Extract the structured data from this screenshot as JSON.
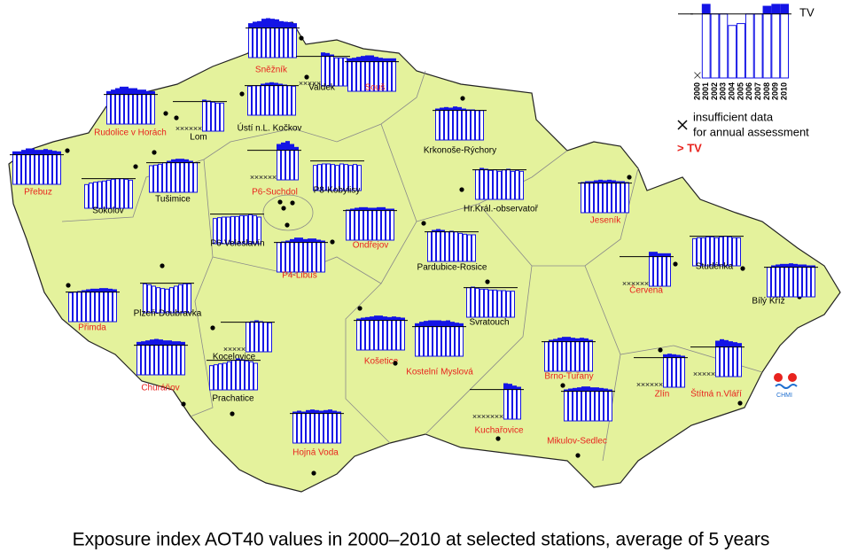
{
  "map": {
    "caption": "Exposure index AOT40 values in 2000–2010 at selected stations, average of 5 years",
    "tv": 1,
    "ylim": [
      0,
      1.35
    ],
    "legend_ylim": [
      0,
      1.19
    ],
    "bar_color": "#1414e6",
    "legend": {
      "tv_label": "TV",
      "years": [
        "2000",
        "2001",
        "2002",
        "2003",
        "2004",
        "2005",
        "2006",
        "2007",
        "2008",
        "2009",
        "2010"
      ],
      "sample": [
        null,
        1.15,
        1.0,
        1.0,
        0.82,
        0.85,
        1.0,
        1.0,
        1.12,
        1.15,
        1.15
      ],
      "insufficient_1": "insufficient data",
      "insufficient_2": "for annual assessment",
      "exceed": "> TV",
      "exceed_color": "#e8231e"
    },
    "logo": "CHMI",
    "stations": [
      {
        "name": "Sněžník",
        "label_color": "#e8231e",
        "values": [
          1.15,
          1.2,
          1.22,
          1.3,
          1.32,
          1.3,
          1.28,
          1.22,
          1.2,
          1.18,
          1.15
        ]
      },
      {
        "name": "Valdek",
        "label_color": "#000000",
        "values": [
          null,
          null,
          null,
          null,
          null,
          1.12,
          1.1,
          1.05,
          0.95,
          0.95,
          0.95
        ]
      },
      {
        "name": "Souš",
        "label_color": "#e8231e",
        "values": [
          1.1,
          1.12,
          1.15,
          1.18,
          1.2,
          1.2,
          1.15,
          1.12,
          1.1,
          1.1,
          1.1
        ]
      },
      {
        "name": "Rudolice v Horách",
        "label_color": "#e8231e",
        "values": [
          1.1,
          1.15,
          1.2,
          1.25,
          1.25,
          1.2,
          1.2,
          1.15,
          1.15,
          1.1,
          1.1
        ]
      },
      {
        "name": "Lom",
        "label_color": "#000000",
        "values": [
          null,
          null,
          null,
          null,
          null,
          null,
          1.05,
          1.02,
          0.98,
          0.95,
          0.95
        ]
      },
      {
        "name": "Ústí n.L. Kočkov",
        "label_color": "#000000",
        "values": [
          0.98,
          1.0,
          1.0,
          1.05,
          1.08,
          1.1,
          1.08,
          1.05,
          1.02,
          1.0,
          0.98
        ]
      },
      {
        "name": "Krkonoše-Rýchory",
        "label_color": "#000000",
        "values": [
          1.05,
          1.08,
          1.1,
          1.08,
          1.12,
          1.1,
          1.05,
          1.02,
          1.02,
          1.0,
          1.0
        ]
      },
      {
        "name": "Přebuz",
        "label_color": "#e8231e",
        "values": [
          1.1,
          1.1,
          1.15,
          1.2,
          1.2,
          1.15,
          1.15,
          1.18,
          1.15,
          1.12,
          1.1
        ]
      },
      {
        "name": "Sokolov",
        "label_color": "#000000",
        "values": [
          0.8,
          0.85,
          0.88,
          0.9,
          0.92,
          0.95,
          0.98,
          1.0,
          1.0,
          0.98,
          0.95
        ]
      },
      {
        "name": "Tušimice",
        "label_color": "#000000",
        "values": [
          0.9,
          0.92,
          0.95,
          1.0,
          1.05,
          1.1,
          1.12,
          1.12,
          1.1,
          1.05,
          1.0
        ]
      },
      {
        "name": "P6-Suchdol",
        "label_color": "#e8231e",
        "values": [
          null,
          null,
          null,
          null,
          null,
          null,
          1.2,
          1.25,
          1.3,
          1.2,
          1.1
        ]
      },
      {
        "name": "P8-Kobylisy",
        "label_color": "#000000",
        "values": [
          0.85,
          0.88,
          0.9,
          0.9,
          0.88,
          0.85,
          0.9,
          0.88,
          0.85,
          0.88,
          0.85
        ]
      },
      {
        "name": "Hr.Král.-observatoř",
        "label_color": "#000000",
        "values": [
          1.0,
          1.05,
          1.02,
          0.98,
          1.0,
          0.95,
          1.0,
          1.02,
          0.95,
          0.98,
          0.95
        ]
      },
      {
        "name": "Jeseník",
        "label_color": "#e8231e",
        "values": [
          1.02,
          1.05,
          1.05,
          1.08,
          1.1,
          1.08,
          1.1,
          1.08,
          1.05,
          1.05,
          1.02
        ]
      },
      {
        "name": "P6-Veleslavín",
        "label_color": "#000000",
        "values": [
          0.85,
          0.88,
          0.9,
          0.9,
          0.92,
          0.92,
          0.95,
          0.95,
          0.98,
          0.95,
          0.9
        ]
      },
      {
        "name": "Ondřejov",
        "label_color": "#e8231e",
        "values": [
          1.02,
          1.05,
          1.08,
          1.1,
          1.1,
          1.08,
          1.08,
          1.1,
          1.1,
          1.05,
          1.05
        ]
      },
      {
        "name": "P4-Libuš",
        "label_color": "#e8231e",
        "values": [
          1.0,
          1.02,
          1.05,
          1.1,
          1.15,
          1.15,
          1.1,
          1.12,
          1.12,
          1.08,
          1.05
        ]
      },
      {
        "name": "Pardubice-Rosice",
        "label_color": "#000000",
        "values": [
          1.0,
          1.05,
          1.08,
          1.05,
          1.0,
          1.02,
          1.0,
          0.95,
          0.92,
          0.9,
          0.9
        ]
      },
      {
        "name": "Studénka",
        "label_color": "#000000",
        "values": [
          0.92,
          0.95,
          0.95,
          0.98,
          0.98,
          0.95,
          0.98,
          1.0,
          0.98,
          0.95,
          0.95
        ]
      },
      {
        "name": "Bílý Kříž",
        "label_color": "#000000",
        "values": [
          1.0,
          1.05,
          1.08,
          1.1,
          1.1,
          1.12,
          1.1,
          1.08,
          1.08,
          1.05,
          1.05
        ]
      },
      {
        "name": "Červená",
        "label_color": "#e8231e",
        "values": [
          null,
          null,
          null,
          null,
          null,
          null,
          1.15,
          1.15,
          1.1,
          1.1,
          1.1
        ]
      },
      {
        "name": "Přimda",
        "label_color": "#e8231e",
        "values": [
          0.98,
          1.0,
          1.02,
          1.05,
          1.08,
          1.1,
          1.1,
          1.12,
          1.12,
          1.1,
          1.08
        ]
      },
      {
        "name": "Plzeň-Doubravka",
        "label_color": "#000000",
        "values": [
          0.98,
          0.95,
          0.9,
          0.85,
          0.82,
          0.8,
          0.85,
          0.9,
          0.95,
          0.98,
          0.98
        ]
      },
      {
        "name": "Svratouch",
        "label_color": "#000000",
        "values": [
          1.0,
          1.02,
          0.98,
          0.95,
          0.95,
          0.92,
          0.92,
          0.9,
          0.9,
          0.88,
          0.88
        ]
      },
      {
        "name": "Košetice",
        "label_color": "#e8231e",
        "values": [
          1.05,
          1.08,
          1.1,
          1.12,
          1.15,
          1.15,
          1.12,
          1.1,
          1.12,
          1.1,
          1.08
        ]
      },
      {
        "name": "Kostelní Myslová",
        "label_color": "#e8231e",
        "values": [
          1.1,
          1.15,
          1.18,
          1.2,
          1.2,
          1.2,
          1.18,
          1.2,
          1.15,
          1.12,
          1.1
        ]
      },
      {
        "name": "Kocelovice",
        "label_color": "#000000",
        "values": [
          null,
          null,
          null,
          null,
          null,
          1.0,
          1.02,
          1.05,
          1.02,
          1.0,
          0.98
        ]
      },
      {
        "name": "Brno-Tuřany",
        "label_color": "#e8231e",
        "values": [
          1.0,
          1.05,
          1.08,
          1.12,
          1.15,
          1.15,
          1.12,
          1.1,
          1.12,
          1.1,
          1.05
        ]
      },
      {
        "name": "Churáňov",
        "label_color": "#e8231e",
        "values": [
          1.1,
          1.12,
          1.15,
          1.18,
          1.2,
          1.18,
          1.15,
          1.15,
          1.12,
          1.12,
          1.1
        ]
      },
      {
        "name": "Zlín",
        "label_color": "#e8231e",
        "values": [
          null,
          null,
          null,
          null,
          null,
          null,
          1.1,
          1.12,
          1.1,
          1.08,
          1.05
        ]
      },
      {
        "name": "Štítná n.Vláří",
        "label_color": "#e8231e",
        "values": [
          null,
          null,
          null,
          null,
          null,
          1.2,
          1.25,
          1.22,
          1.18,
          1.15,
          1.12
        ]
      },
      {
        "name": "Prachatice",
        "label_color": "#000000",
        "values": [
          0.82,
          0.85,
          0.88,
          0.9,
          0.95,
          1.0,
          1.05,
          1.02,
          0.98,
          0.95,
          0.9
        ]
      },
      {
        "name": "Kuchařovice",
        "label_color": "#e8231e",
        "values": [
          null,
          null,
          null,
          null,
          null,
          null,
          null,
          1.2,
          1.18,
          1.12,
          1.08
        ]
      },
      {
        "name": "Hojná Voda",
        "label_color": "#e8231e",
        "values": [
          1.05,
          1.08,
          1.05,
          1.1,
          1.12,
          1.1,
          1.08,
          1.1,
          1.12,
          1.08,
          1.05
        ]
      },
      {
        "name": "Mikulov-Sedlec",
        "label_color": "#e8231e",
        "values": [
          1.05,
          1.08,
          1.1,
          1.12,
          1.15,
          1.15,
          1.12,
          1.12,
          1.1,
          1.08,
          1.05
        ]
      }
    ]
  }
}
